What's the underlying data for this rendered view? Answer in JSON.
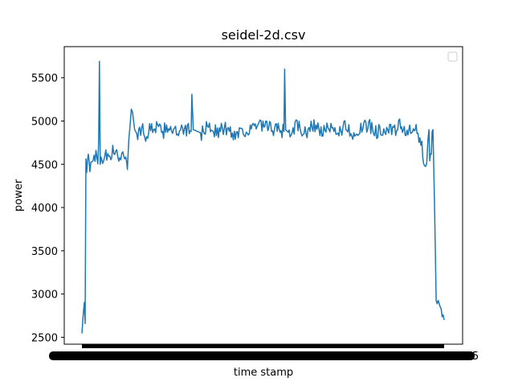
{
  "chart_data": {
    "type": "line",
    "title": "seidel-2d.csv",
    "xlabel": "time stamp",
    "ylabel": "power",
    "ylim": [
      2420,
      5860
    ],
    "yticks": [
      2500,
      3000,
      3500,
      4000,
      4500,
      5000,
      5500
    ],
    "x_tick_labels_note": "x tick labels are densely overlapped and illegible",
    "grid": false,
    "legend": "top-right, empty",
    "line_color": "#1f77b4",
    "series": [
      {
        "x_fraction": [
          0.0,
          0.0066,
          0.0088,
          0.011,
          0.013,
          0.0176,
          0.022,
          0.0308,
          0.044,
          0.0462,
          0.0484,
          0.0506,
          0.0528,
          0.0572,
          0.066,
          0.077,
          0.088,
          0.099,
          0.11,
          0.121,
          0.1254,
          0.1298,
          0.132,
          0.1364,
          0.143,
          0.154,
          0.165,
          0.176,
          0.198,
          0.22,
          0.242,
          0.264,
          0.286,
          0.3016,
          0.3036,
          0.3076,
          0.33,
          0.352,
          0.374,
          0.396,
          0.418,
          0.44,
          0.462,
          0.484,
          0.5578,
          0.5596,
          0.5626,
          0.572,
          0.594,
          0.616,
          0.638,
          0.66,
          0.682,
          0.704,
          0.726,
          0.748,
          0.77,
          0.792,
          0.814,
          0.836,
          0.858,
          0.88,
          0.9,
          0.92,
          0.936,
          0.946,
          0.952,
          0.9582,
          0.9604,
          0.9648,
          0.967,
          0.9692,
          0.9736,
          0.978,
          0.989,
          1.0
        ],
        "values": [
          2600,
          2850,
          2620,
          4560,
          4420,
          4560,
          4480,
          4620,
          4560,
          4750,
          5690,
          4500,
          4620,
          4560,
          4640,
          4520,
          4680,
          4560,
          4640,
          4600,
          4440,
          4800,
          4880,
          5180,
          4950,
          4850,
          4920,
          4820,
          4960,
          4860,
          4950,
          4840,
          4900,
          4880,
          5310,
          4900,
          4860,
          4950,
          4870,
          4920,
          4840,
          4900,
          4880,
          4950,
          4880,
          5600,
          4900,
          4860,
          4950,
          4850,
          4960,
          4880,
          4900,
          4870,
          4940,
          4860,
          4900,
          4950,
          4880,
          4920,
          4870,
          4950,
          4860,
          4900,
          4750,
          4500,
          4600,
          4900,
          4540,
          4700,
          4950,
          4900,
          4000,
          2950,
          2800,
          2700
        ]
      }
    ]
  }
}
